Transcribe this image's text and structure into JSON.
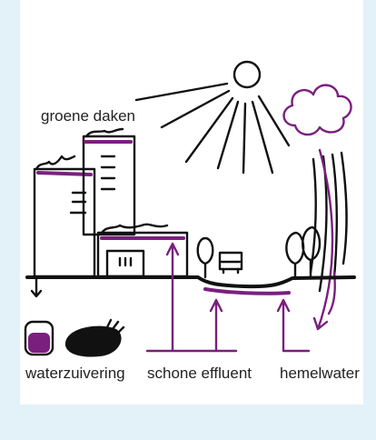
{
  "labels": {
    "roofs": "groene daken",
    "treatment": "waterzuivering",
    "effluent": "schone effluent",
    "rain": "hemelwater"
  }
}
